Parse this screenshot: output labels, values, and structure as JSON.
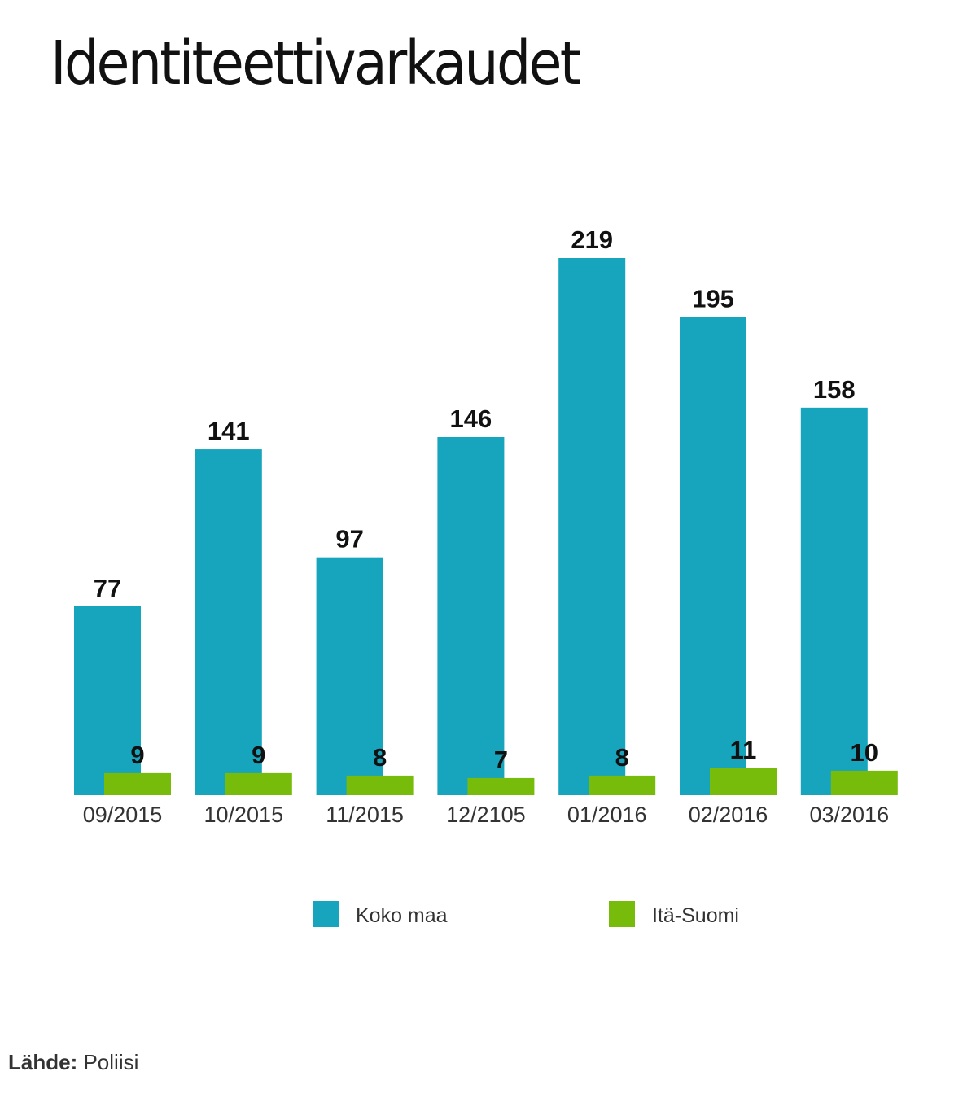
{
  "chart_data": {
    "type": "bar",
    "title": "Identiteettivarkaudet",
    "categories": [
      "09/2015",
      "10/2015",
      "11/2015",
      "12/2105",
      "01/2016",
      "02/2016",
      "03/2016"
    ],
    "series": [
      {
        "name": "Koko maa",
        "color": "#17a4bd",
        "values": [
          77,
          141,
          97,
          146,
          219,
          195,
          158
        ]
      },
      {
        "name": "Itä-Suomi",
        "color": "#77bb0b",
        "values": [
          9,
          9,
          8,
          7,
          8,
          11,
          10
        ]
      }
    ],
    "ylim": [
      0,
      220
    ],
    "grid": false,
    "legend_position": "bottom-center"
  },
  "source": {
    "label": "Lähde:",
    "value": "Poliisi"
  }
}
